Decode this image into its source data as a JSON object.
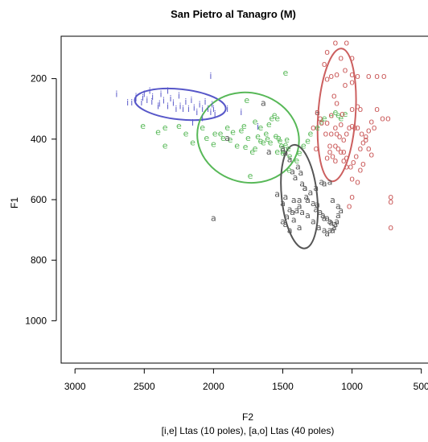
{
  "chart_data": {
    "type": "scatter",
    "title": "San Pietro al Tanagro (M)",
    "xlabel": "F2",
    "xlabel_sub": "[i,e] Ltas (10 poles), [a,o] Ltas (40 poles)",
    "ylabel": "F1",
    "x_reversed": true,
    "y_reversed": true,
    "xlim": [
      3100,
      440
    ],
    "ylim": [
      1140,
      60
    ],
    "x_ticks": [
      3000,
      2500,
      2000,
      1500,
      1000,
      500
    ],
    "y_ticks": [
      200,
      400,
      600,
      800,
      1000
    ],
    "grid": false,
    "legend": "none",
    "series": [
      {
        "symbol": "i",
        "color": "#5757c9",
        "points": [
          [
            2700,
            250
          ],
          [
            2620,
            278
          ],
          [
            2590,
            278
          ],
          [
            2560,
            265
          ],
          [
            2520,
            278
          ],
          [
            2500,
            250
          ],
          [
            2480,
            270
          ],
          [
            2460,
            240
          ],
          [
            2440,
            260
          ],
          [
            2400,
            290
          ],
          [
            2380,
            250
          ],
          [
            2360,
            272
          ],
          [
            2330,
            240
          ],
          [
            2310,
            265
          ],
          [
            2290,
            280
          ],
          [
            2270,
            300
          ],
          [
            2250,
            255
          ],
          [
            2240,
            290
          ],
          [
            2220,
            300
          ],
          [
            2200,
            275
          ],
          [
            2180,
            300
          ],
          [
            2160,
            270
          ],
          [
            2140,
            295
          ],
          [
            2120,
            310
          ],
          [
            2100,
            285
          ],
          [
            2080,
            300
          ],
          [
            2060,
            275
          ],
          [
            2040,
            300
          ],
          [
            2020,
            310
          ],
          [
            2010,
            285
          ],
          [
            2000,
            300
          ],
          [
            1990,
            315
          ],
          [
            2150,
            345
          ],
          [
            2080,
            330
          ],
          [
            2020,
            190
          ],
          [
            2560,
            258
          ],
          [
            2510,
            262
          ],
          [
            2445,
            275
          ],
          [
            2390,
            282
          ],
          [
            2330,
            290
          ],
          [
            1900,
            300
          ],
          [
            1800,
            310
          ],
          [
            1680,
            358
          ]
        ],
        "ellipse": {
          "cx": 2240,
          "cy": 285,
          "rx": 330,
          "ry": 50,
          "angle": 6
        }
      },
      {
        "symbol": "e",
        "color": "#57b857",
        "points": [
          [
            2510,
            355
          ],
          [
            2400,
            375
          ],
          [
            2350,
            360
          ],
          [
            2250,
            355
          ],
          [
            2200,
            380
          ],
          [
            2150,
            410
          ],
          [
            2050,
            395
          ],
          [
            1990,
            380
          ],
          [
            1950,
            380
          ],
          [
            1900,
            360
          ],
          [
            1860,
            375
          ],
          [
            1800,
            370
          ],
          [
            1780,
            355
          ],
          [
            1760,
            270
          ],
          [
            1700,
            340
          ],
          [
            1680,
            390
          ],
          [
            1660,
            360
          ],
          [
            1640,
            410
          ],
          [
            1620,
            380
          ],
          [
            1600,
            350
          ],
          [
            1580,
            330
          ],
          [
            1560,
            320
          ],
          [
            1540,
            330
          ],
          [
            1530,
            395
          ],
          [
            1520,
            405
          ],
          [
            1510,
            420
          ],
          [
            1500,
            435
          ],
          [
            1500,
            445
          ],
          [
            1480,
            418
          ],
          [
            1470,
            400
          ],
          [
            1460,
            430
          ],
          [
            1450,
            455
          ],
          [
            1400,
            470
          ],
          [
            1380,
            445
          ],
          [
            1350,
            420
          ],
          [
            1320,
            405
          ],
          [
            1300,
            380
          ],
          [
            1250,
            360
          ],
          [
            1220,
            340
          ],
          [
            1200,
            330
          ],
          [
            1150,
            320
          ],
          [
            1120,
            310
          ],
          [
            1100,
            320
          ],
          [
            1080,
            330
          ],
          [
            1050,
            315
          ],
          [
            1480,
            180
          ],
          [
            1700,
            430
          ],
          [
            1750,
            395
          ],
          [
            1830,
            420
          ],
          [
            1770,
            425
          ],
          [
            1720,
            440
          ],
          [
            1660,
            405
          ],
          [
            1610,
            398
          ],
          [
            1550,
            388
          ],
          [
            1590,
            410
          ],
          [
            1455,
            500
          ],
          [
            1735,
            520
          ],
          [
            2350,
            420
          ],
          [
            1880,
            400
          ],
          [
            1930,
            395
          ],
          [
            2000,
            415
          ],
          [
            2080,
            360
          ],
          [
            1540,
            440
          ]
        ],
        "ellipse": {
          "cx": 1750,
          "cy": 395,
          "rx": 370,
          "ry": 148,
          "angle": 14
        }
      },
      {
        "symbol": "a",
        "color": "#555555",
        "points": [
          [
            1640,
            280
          ],
          [
            1600,
            440
          ],
          [
            1500,
            430
          ],
          [
            1480,
            445
          ],
          [
            1450,
            465
          ],
          [
            1430,
            505
          ],
          [
            1410,
            525
          ],
          [
            1390,
            490
          ],
          [
            1370,
            510
          ],
          [
            1360,
            545
          ],
          [
            1340,
            560
          ],
          [
            1330,
            590
          ],
          [
            1320,
            600
          ],
          [
            1300,
            575
          ],
          [
            1280,
            610
          ],
          [
            1260,
            630
          ],
          [
            1250,
            615
          ],
          [
            1230,
            640
          ],
          [
            1210,
            650
          ],
          [
            1200,
            660
          ],
          [
            1180,
            660
          ],
          [
            1160,
            670
          ],
          [
            1150,
            675
          ],
          [
            1140,
            700
          ],
          [
            1130,
            690
          ],
          [
            1120,
            680
          ],
          [
            1110,
            670
          ],
          [
            1100,
            650
          ],
          [
            1400,
            635
          ],
          [
            1430,
            640
          ],
          [
            1450,
            630
          ],
          [
            1470,
            655
          ],
          [
            1480,
            680
          ],
          [
            1500,
            670
          ],
          [
            1420,
            665
          ],
          [
            1380,
            690
          ],
          [
            1360,
            640
          ],
          [
            1320,
            650
          ],
          [
            1280,
            670
          ],
          [
            1240,
            690
          ],
          [
            1200,
            700
          ],
          [
            1180,
            710
          ],
          [
            1160,
            700
          ],
          [
            1540,
            580
          ],
          [
            1480,
            590
          ],
          [
            1420,
            600
          ],
          [
            1380,
            620
          ],
          [
            1260,
            560
          ],
          [
            1200,
            545
          ],
          [
            1160,
            540
          ],
          [
            1140,
            600
          ],
          [
            1100,
            620
          ],
          [
            1080,
            635
          ],
          [
            1900,
            395
          ],
          [
            2000,
            660
          ],
          [
            1500,
            610
          ],
          [
            1450,
            700
          ],
          [
            1220,
            540
          ],
          [
            1340,
            560
          ],
          [
            1380,
            600
          ],
          [
            1250,
            310
          ]
        ],
        "ellipse": {
          "cx": 1380,
          "cy": 590,
          "rx": 128,
          "ry": 172,
          "angle": -6
        }
      },
      {
        "symbol": "o",
        "color": "#cc5f5f",
        "points": [
          [
            1180,
            110
          ],
          [
            1120,
            80
          ],
          [
            1040,
            80
          ],
          [
            1000,
            130
          ],
          [
            1080,
            130
          ],
          [
            1050,
            170
          ],
          [
            1000,
            185
          ],
          [
            960,
            190
          ],
          [
            880,
            190
          ],
          [
            820,
            190
          ],
          [
            770,
            190
          ],
          [
            1000,
            210
          ],
          [
            1050,
            220
          ],
          [
            1110,
            185
          ],
          [
            1150,
            190
          ],
          [
            1200,
            150
          ],
          [
            1180,
            200
          ],
          [
            1130,
            255
          ],
          [
            1110,
            280
          ],
          [
            1070,
            315
          ],
          [
            1150,
            320
          ],
          [
            1250,
            310
          ],
          [
            1220,
            345
          ],
          [
            1180,
            345
          ],
          [
            1150,
            380
          ],
          [
            1110,
            380
          ],
          [
            1090,
            390
          ],
          [
            1060,
            400
          ],
          [
            1040,
            380
          ],
          [
            1020,
            360
          ],
          [
            1000,
            355
          ],
          [
            980,
            360
          ],
          [
            960,
            360
          ],
          [
            930,
            380
          ],
          [
            900,
            400
          ],
          [
            880,
            430
          ],
          [
            860,
            450
          ],
          [
            840,
            360
          ],
          [
            1160,
            420
          ],
          [
            1120,
            420
          ],
          [
            1100,
            430
          ],
          [
            1080,
            440
          ],
          [
            1060,
            440
          ],
          [
            1040,
            460
          ],
          [
            1010,
            490
          ],
          [
            990,
            475
          ],
          [
            970,
            455
          ],
          [
            940,
            430
          ],
          [
            920,
            410
          ],
          [
            900,
            390
          ],
          [
            880,
            370
          ],
          [
            860,
            340
          ],
          [
            820,
            300
          ],
          [
            780,
            330
          ],
          [
            740,
            330
          ],
          [
            1000,
            590
          ],
          [
            720,
            590
          ],
          [
            720,
            605
          ],
          [
            720,
            690
          ],
          [
            1020,
            620
          ],
          [
            1260,
            430
          ],
          [
            1180,
            460
          ],
          [
            1160,
            440
          ],
          [
            1140,
            455
          ],
          [
            1120,
            470
          ],
          [
            1060,
            470
          ],
          [
            1040,
            490
          ],
          [
            1000,
            530
          ],
          [
            960,
            540
          ],
          [
            940,
            500
          ],
          [
            920,
            480
          ],
          [
            1190,
            380
          ],
          [
            1230,
            330
          ],
          [
            1280,
            360
          ],
          [
            1000,
            300
          ],
          [
            960,
            290
          ],
          [
            940,
            300
          ],
          [
            1120,
            360
          ],
          [
            1080,
            350
          ]
        ],
        "ellipse": {
          "cx": 1110,
          "cy": 320,
          "rx": 135,
          "ry": 220,
          "angle": 4
        }
      }
    ]
  }
}
